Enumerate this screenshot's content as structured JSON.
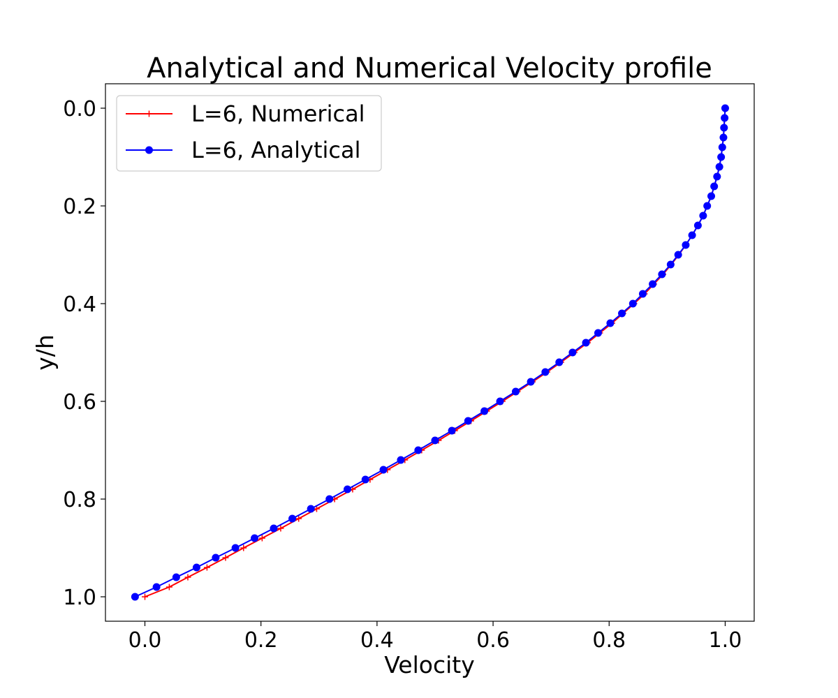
{
  "chart_data": {
    "type": "line",
    "title": "Analytical and Numerical Velocity profile",
    "xlabel": "Velocity",
    "ylabel": "y/h",
    "xlim": [
      -0.068,
      1.05
    ],
    "ylim": [
      1.05,
      -0.05
    ],
    "y_inverted": true,
    "grid": false,
    "legend_position": "upper-left",
    "xticks": [
      0.0,
      0.2,
      0.4,
      0.6,
      0.8,
      1.0
    ],
    "xtick_labels": [
      "0.0",
      "0.2",
      "0.4",
      "0.6",
      "0.8",
      "1.0"
    ],
    "yticks": [
      0.0,
      0.2,
      0.4,
      0.6,
      0.8,
      1.0
    ],
    "ytick_labels": [
      "0.0",
      "0.2",
      "0.4",
      "0.6",
      "0.8",
      "1.0"
    ],
    "series": [
      {
        "name": "L=6, Numerical",
        "color": "#ff0000",
        "marker": "plus",
        "points": [
          [
            1.0,
            0.0
          ],
          [
            0.999,
            0.02
          ],
          [
            0.998,
            0.04
          ],
          [
            0.997,
            0.06
          ],
          [
            0.995,
            0.08
          ],
          [
            0.993,
            0.1
          ],
          [
            0.99,
            0.12
          ],
          [
            0.986,
            0.14
          ],
          [
            0.981,
            0.16
          ],
          [
            0.976,
            0.18
          ],
          [
            0.969,
            0.2
          ],
          [
            0.962,
            0.22
          ],
          [
            0.953,
            0.24
          ],
          [
            0.943,
            0.26
          ],
          [
            0.932,
            0.28
          ],
          [
            0.92,
            0.3
          ],
          [
            0.907,
            0.32
          ],
          [
            0.893,
            0.34
          ],
          [
            0.877,
            0.36
          ],
          [
            0.861,
            0.38
          ],
          [
            0.843,
            0.4
          ],
          [
            0.824,
            0.42
          ],
          [
            0.805,
            0.44
          ],
          [
            0.784,
            0.46
          ],
          [
            0.763,
            0.48
          ],
          [
            0.74,
            0.5
          ],
          [
            0.717,
            0.52
          ],
          [
            0.693,
            0.54
          ],
          [
            0.668,
            0.56
          ],
          [
            0.642,
            0.58
          ],
          [
            0.616,
            0.6
          ],
          [
            0.589,
            0.62
          ],
          [
            0.562,
            0.64
          ],
          [
            0.534,
            0.66
          ],
          [
            0.506,
            0.68
          ],
          [
            0.477,
            0.7
          ],
          [
            0.448,
            0.72
          ],
          [
            0.418,
            0.74
          ],
          [
            0.388,
            0.76
          ],
          [
            0.358,
            0.78
          ],
          [
            0.327,
            0.8
          ],
          [
            0.296,
            0.82
          ],
          [
            0.265,
            0.84
          ],
          [
            0.234,
            0.86
          ],
          [
            0.202,
            0.88
          ],
          [
            0.17,
            0.9
          ],
          [
            0.139,
            0.92
          ],
          [
            0.107,
            0.94
          ],
          [
            0.074,
            0.96
          ],
          [
            0.042,
            0.98
          ],
          [
            0.0,
            1.0
          ]
        ]
      },
      {
        "name": "L=6, Analytical",
        "color": "#0000ff",
        "marker": "circle",
        "points": [
          [
            1.0,
            0.0
          ],
          [
            0.999,
            0.02
          ],
          [
            0.998,
            0.04
          ],
          [
            0.997,
            0.06
          ],
          [
            0.995,
            0.08
          ],
          [
            0.993,
            0.1
          ],
          [
            0.99,
            0.12
          ],
          [
            0.986,
            0.14
          ],
          [
            0.981,
            0.16
          ],
          [
            0.976,
            0.18
          ],
          [
            0.969,
            0.2
          ],
          [
            0.962,
            0.22
          ],
          [
            0.953,
            0.24
          ],
          [
            0.943,
            0.26
          ],
          [
            0.932,
            0.28
          ],
          [
            0.919,
            0.3
          ],
          [
            0.906,
            0.32
          ],
          [
            0.891,
            0.34
          ],
          [
            0.875,
            0.36
          ],
          [
            0.858,
            0.38
          ],
          [
            0.841,
            0.4
          ],
          [
            0.822,
            0.42
          ],
          [
            0.802,
            0.44
          ],
          [
            0.781,
            0.46
          ],
          [
            0.76,
            0.48
          ],
          [
            0.737,
            0.5
          ],
          [
            0.714,
            0.52
          ],
          [
            0.69,
            0.54
          ],
          [
            0.665,
            0.56
          ],
          [
            0.639,
            0.58
          ],
          [
            0.612,
            0.6
          ],
          [
            0.585,
            0.62
          ],
          [
            0.557,
            0.64
          ],
          [
            0.529,
            0.66
          ],
          [
            0.5,
            0.68
          ],
          [
            0.471,
            0.7
          ],
          [
            0.441,
            0.72
          ],
          [
            0.411,
            0.74
          ],
          [
            0.38,
            0.76
          ],
          [
            0.349,
            0.78
          ],
          [
            0.318,
            0.8
          ],
          [
            0.286,
            0.82
          ],
          [
            0.254,
            0.84
          ],
          [
            0.222,
            0.86
          ],
          [
            0.189,
            0.88
          ],
          [
            0.156,
            0.9
          ],
          [
            0.122,
            0.92
          ],
          [
            0.089,
            0.94
          ],
          [
            0.054,
            0.96
          ],
          [
            0.02,
            0.98
          ],
          [
            -0.017,
            1.0
          ]
        ]
      }
    ]
  }
}
